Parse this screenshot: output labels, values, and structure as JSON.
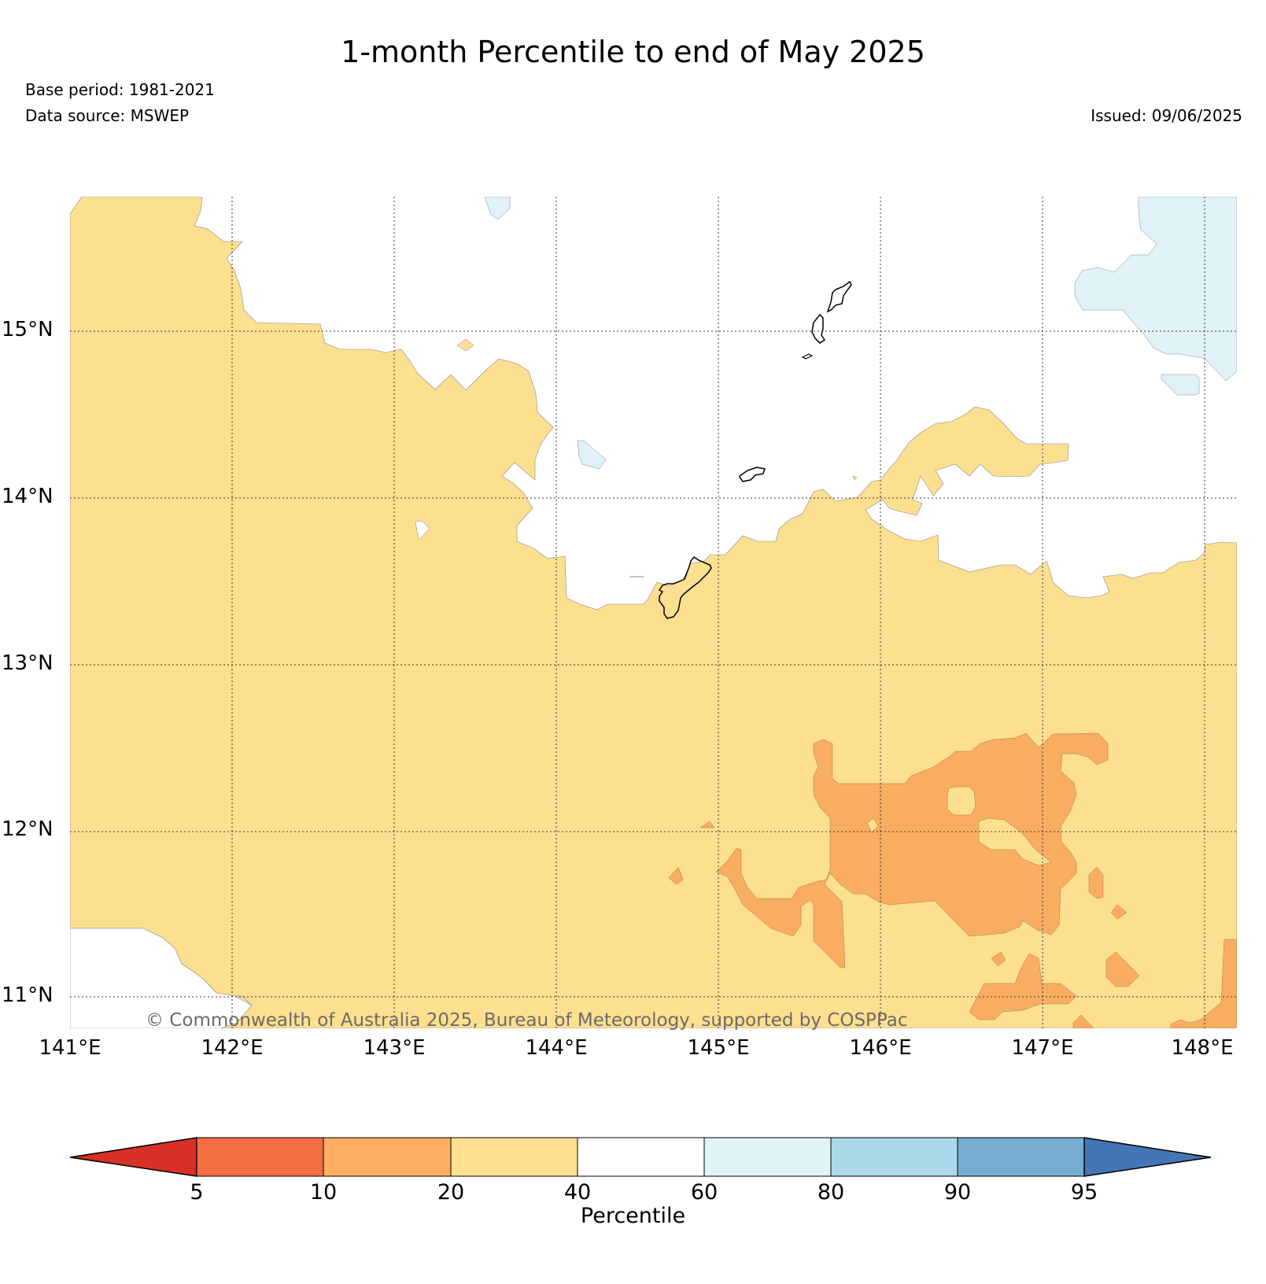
{
  "title": "1-month Percentile to end of May 2025",
  "base_period": "Base period: 1981-2021",
  "data_source": "Data source: MSWEP",
  "issued": "Issued: 09/06/2025",
  "credit": "© Commonwealth of Australia 2025, Bureau of Meteorology, supported by COSPPac",
  "map": {
    "lat_labels": [
      "15°N",
      "14°N",
      "13°N",
      "12°N",
      "11°N"
    ],
    "lon_labels": [
      "141°E",
      "142°E",
      "143°E",
      "144°E",
      "145°E",
      "146°E",
      "147°E",
      "148°E"
    ],
    "lat_range": [
      10.8,
      15.8
    ],
    "lon_range": [
      141.0,
      148.2
    ],
    "colors": {
      "land_below_normal": "#fddf90",
      "moderate_dry": "#f9ad60",
      "normal": "#ffffff",
      "above_normal": "#e0f2f8",
      "outline": "#000000"
    }
  },
  "colorbar": {
    "label": "Percentile",
    "ticks": [
      "5",
      "10",
      "20",
      "40",
      "60",
      "80",
      "90",
      "95"
    ],
    "colors": [
      "#d73027",
      "#f46d43",
      "#fdae61",
      "#fee090",
      "#ffffff",
      "#e0f3f8",
      "#abd9e9",
      "#74add1",
      "#4575b4"
    ]
  }
}
